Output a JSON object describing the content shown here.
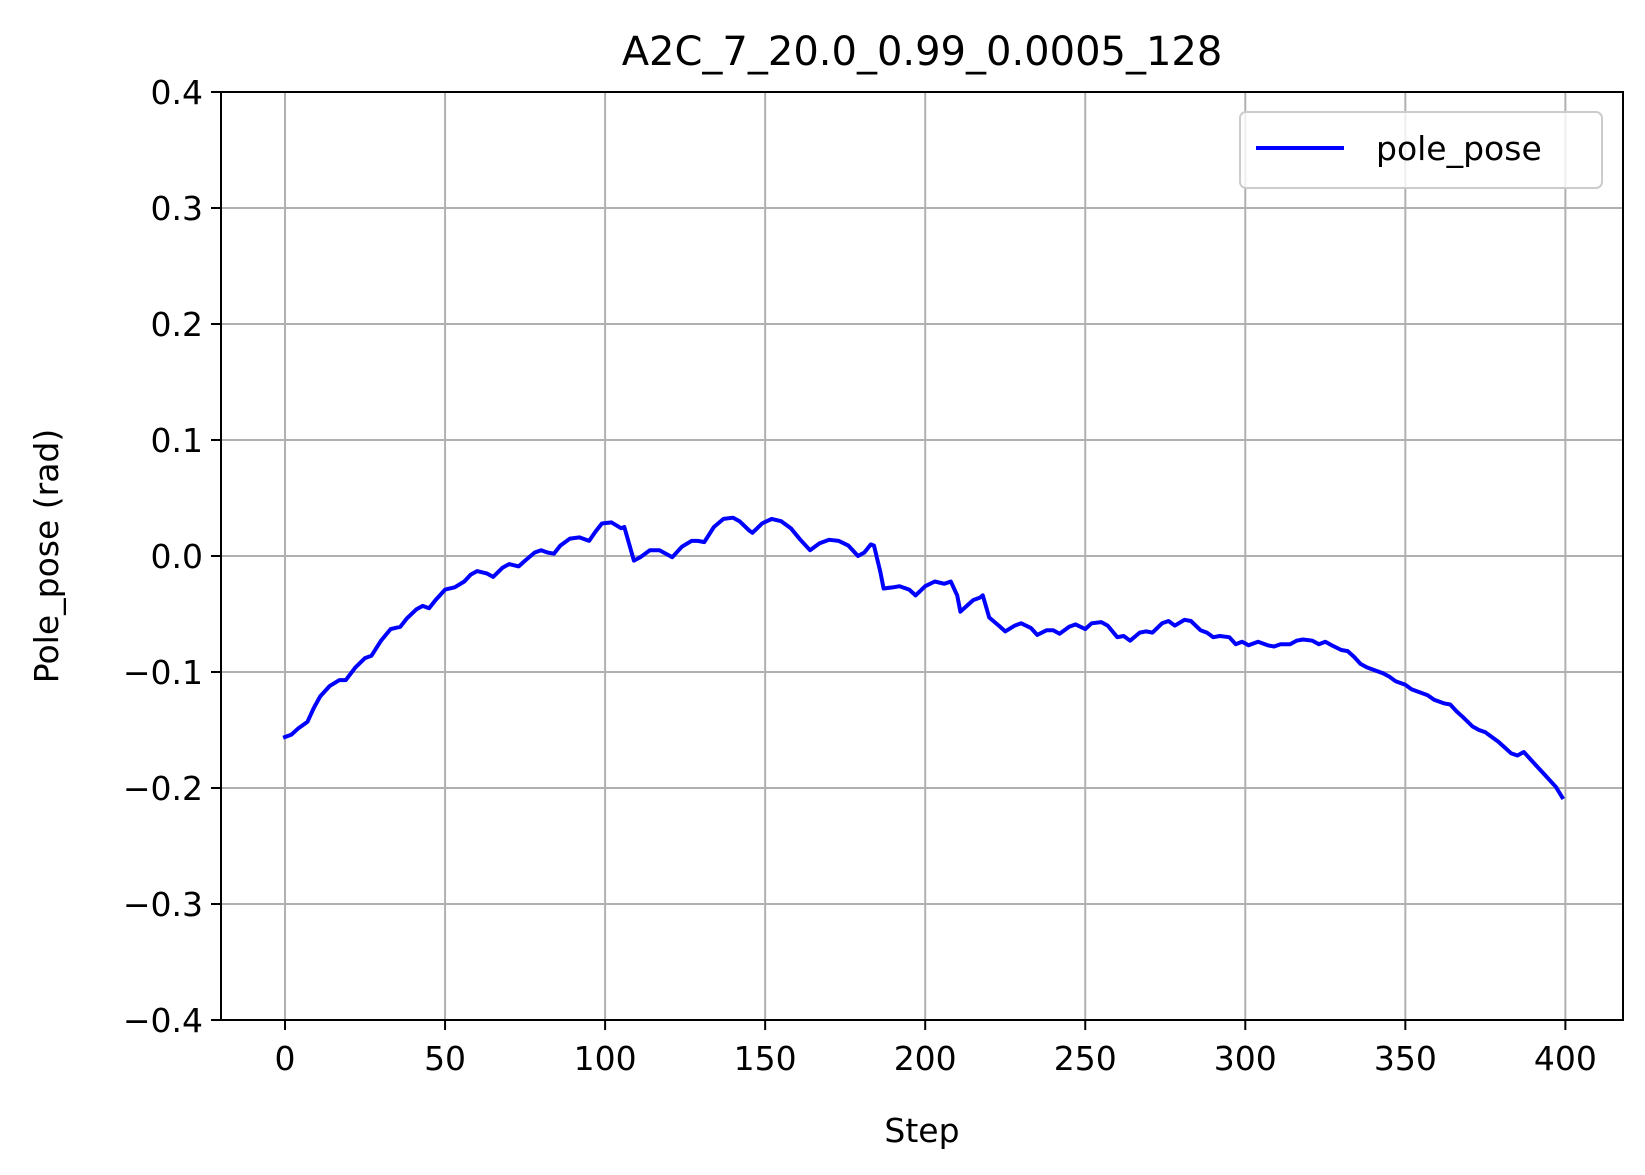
{
  "chart_data": {
    "type": "line",
    "title": "A2C_7_20.0_0.99_0.0005_128",
    "xlabel": "Step",
    "ylabel": "Pole_pose (rad)",
    "xlim": [
      -20,
      418
    ],
    "ylim": [
      -0.4,
      0.4
    ],
    "xticks": [
      0,
      50,
      100,
      150,
      200,
      250,
      300,
      350,
      400
    ],
    "xtick_labels": [
      "0",
      "50",
      "100",
      "150",
      "200",
      "250",
      "300",
      "350",
      "400"
    ],
    "yticks": [
      -0.4,
      -0.3,
      -0.2,
      -0.1,
      0.0,
      0.1,
      0.2,
      0.3,
      0.4
    ],
    "ytick_labels": [
      "−0.4",
      "−0.3",
      "−0.2",
      "−0.1",
      "0.0",
      "0.1",
      "0.2",
      "0.3",
      "0.4"
    ],
    "grid": true,
    "legend_position": "top-right",
    "series": [
      {
        "name": "pole_pose",
        "color": "#0000ff",
        "points": [
          [
            0,
            -0.156
          ],
          [
            2,
            -0.154
          ],
          [
            4,
            -0.149
          ],
          [
            7,
            -0.143
          ],
          [
            9,
            -0.131
          ],
          [
            11,
            -0.121
          ],
          [
            14,
            -0.112
          ],
          [
            17,
            -0.107
          ],
          [
            19,
            -0.107
          ],
          [
            22,
            -0.096
          ],
          [
            25,
            -0.088
          ],
          [
            27,
            -0.086
          ],
          [
            30,
            -0.073
          ],
          [
            33,
            -0.063
          ],
          [
            36,
            -0.061
          ],
          [
            38,
            -0.054
          ],
          [
            41,
            -0.046
          ],
          [
            43,
            -0.043
          ],
          [
            45,
            -0.045
          ],
          [
            47,
            -0.038
          ],
          [
            50,
            -0.029
          ],
          [
            53,
            -0.027
          ],
          [
            56,
            -0.022
          ],
          [
            58,
            -0.016
          ],
          [
            60,
            -0.013
          ],
          [
            63,
            -0.015
          ],
          [
            65,
            -0.018
          ],
          [
            68,
            -0.01
          ],
          [
            70,
            -0.007
          ],
          [
            73,
            -0.009
          ],
          [
            75,
            -0.004
          ],
          [
            78,
            0.003
          ],
          [
            80,
            0.005
          ],
          [
            82,
            0.003
          ],
          [
            84,
            0.002
          ],
          [
            86,
            0.009
          ],
          [
            89,
            0.015
          ],
          [
            92,
            0.016
          ],
          [
            95,
            0.013
          ],
          [
            97,
            0.021
          ],
          [
            99,
            0.028
          ],
          [
            102,
            0.029
          ],
          [
            105,
            0.024
          ],
          [
            106,
            0.025
          ],
          [
            109,
            -0.004
          ],
          [
            111,
            -0.001
          ],
          [
            114,
            0.005
          ],
          [
            117,
            0.005
          ],
          [
            119,
            0.002
          ],
          [
            121,
            -0.001
          ],
          [
            124,
            0.008
          ],
          [
            127,
            0.013
          ],
          [
            129,
            0.013
          ],
          [
            131,
            0.012
          ],
          [
            134,
            0.025
          ],
          [
            137,
            0.032
          ],
          [
            140,
            0.033
          ],
          [
            142,
            0.03
          ],
          [
            145,
            0.022
          ],
          [
            146,
            0.02
          ],
          [
            149,
            0.028
          ],
          [
            152,
            0.032
          ],
          [
            155,
            0.03
          ],
          [
            158,
            0.024
          ],
          [
            161,
            0.014
          ],
          [
            164,
            0.005
          ],
          [
            167,
            0.011
          ],
          [
            170,
            0.014
          ],
          [
            173,
            0.013
          ],
          [
            176,
            0.009
          ],
          [
            179,
            0.0
          ],
          [
            181,
            0.003
          ],
          [
            183,
            0.01
          ],
          [
            184,
            0.009
          ],
          [
            186,
            -0.014
          ],
          [
            187,
            -0.028
          ],
          [
            190,
            -0.027
          ],
          [
            192,
            -0.026
          ],
          [
            195,
            -0.029
          ],
          [
            197,
            -0.034
          ],
          [
            200,
            -0.026
          ],
          [
            203,
            -0.022
          ],
          [
            206,
            -0.024
          ],
          [
            208,
            -0.022
          ],
          [
            210,
            -0.034
          ],
          [
            211,
            -0.048
          ],
          [
            213,
            -0.043
          ],
          [
            215,
            -0.038
          ],
          [
            217,
            -0.036
          ],
          [
            218,
            -0.034
          ],
          [
            220,
            -0.053
          ],
          [
            223,
            -0.06
          ],
          [
            225,
            -0.065
          ],
          [
            228,
            -0.06
          ],
          [
            230,
            -0.058
          ],
          [
            233,
            -0.062
          ],
          [
            235,
            -0.068
          ],
          [
            238,
            -0.064
          ],
          [
            240,
            -0.064
          ],
          [
            242,
            -0.067
          ],
          [
            245,
            -0.061
          ],
          [
            247,
            -0.059
          ],
          [
            250,
            -0.063
          ],
          [
            252,
            -0.058
          ],
          [
            255,
            -0.057
          ],
          [
            257,
            -0.06
          ],
          [
            260,
            -0.07
          ],
          [
            262,
            -0.069
          ],
          [
            264,
            -0.073
          ],
          [
            267,
            -0.066
          ],
          [
            269,
            -0.065
          ],
          [
            271,
            -0.066
          ],
          [
            274,
            -0.058
          ],
          [
            276,
            -0.056
          ],
          [
            278,
            -0.06
          ],
          [
            281,
            -0.055
          ],
          [
            283,
            -0.056
          ],
          [
            286,
            -0.064
          ],
          [
            288,
            -0.066
          ],
          [
            290,
            -0.07
          ],
          [
            292,
            -0.069
          ],
          [
            295,
            -0.07
          ],
          [
            297,
            -0.076
          ],
          [
            299,
            -0.074
          ],
          [
            301,
            -0.077
          ],
          [
            304,
            -0.074
          ],
          [
            307,
            -0.077
          ],
          [
            309,
            -0.078
          ],
          [
            311,
            -0.076
          ],
          [
            314,
            -0.076
          ],
          [
            316,
            -0.073
          ],
          [
            318,
            -0.072
          ],
          [
            321,
            -0.073
          ],
          [
            323,
            -0.076
          ],
          [
            325,
            -0.074
          ],
          [
            327,
            -0.077
          ],
          [
            330,
            -0.081
          ],
          [
            332,
            -0.082
          ],
          [
            334,
            -0.087
          ],
          [
            336,
            -0.093
          ],
          [
            338,
            -0.096
          ],
          [
            340,
            -0.098
          ],
          [
            343,
            -0.101
          ],
          [
            345,
            -0.104
          ],
          [
            347,
            -0.108
          ],
          [
            350,
            -0.111
          ],
          [
            352,
            -0.115
          ],
          [
            355,
            -0.118
          ],
          [
            357,
            -0.12
          ],
          [
            359,
            -0.124
          ],
          [
            362,
            -0.127
          ],
          [
            364,
            -0.128
          ],
          [
            366,
            -0.134
          ],
          [
            368,
            -0.139
          ],
          [
            371,
            -0.147
          ],
          [
            373,
            -0.15
          ],
          [
            375,
            -0.152
          ],
          [
            377,
            -0.156
          ],
          [
            379,
            -0.16
          ],
          [
            381,
            -0.165
          ],
          [
            383,
            -0.17
          ],
          [
            385,
            -0.172
          ],
          [
            387,
            -0.169
          ],
          [
            389,
            -0.175
          ],
          [
            391,
            -0.181
          ],
          [
            393,
            -0.187
          ],
          [
            395,
            -0.193
          ],
          [
            397,
            -0.199
          ],
          [
            399,
            -0.208
          ]
        ]
      }
    ]
  }
}
